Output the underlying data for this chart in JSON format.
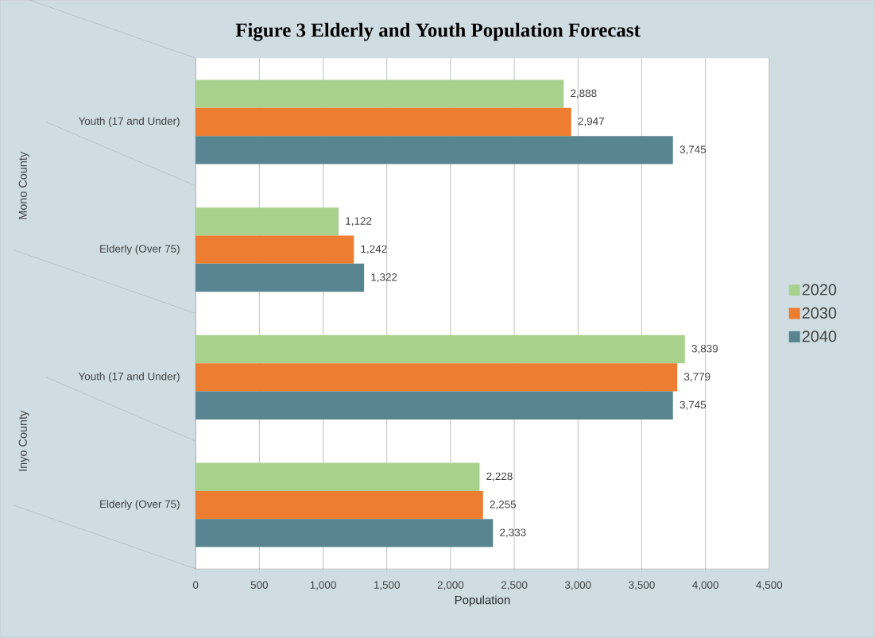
{
  "chart_data": {
    "type": "bar",
    "orientation": "horizontal",
    "title": "Figure 3 Elderly and Youth Population Forecast",
    "xlabel": "Population",
    "categories": [
      "Youth (17 and Under)",
      "Elderly (Over 75)",
      "Youth (17 and Under)",
      "Elderly (Over 75)"
    ],
    "annotations": [
      "Mono County",
      "Inyo County"
    ],
    "series": [
      {
        "name": "2020",
        "color": "#a9d18e",
        "values": [
          2888,
          1122,
          3839,
          2228
        ],
        "value_labels": [
          "2,888",
          "1,122",
          "3,839",
          "2,228"
        ]
      },
      {
        "name": "2030",
        "color": "#ed7d31",
        "values": [
          2947,
          1242,
          3779,
          2255
        ],
        "value_labels": [
          "2,947",
          "1,242",
          "3,779",
          "2,255"
        ]
      },
      {
        "name": "2040",
        "color": "#58858f",
        "values": [
          3745,
          1322,
          3745,
          2333
        ],
        "value_labels": [
          "3,745",
          "1,322",
          "3,745",
          "2,333"
        ]
      }
    ],
    "xlim": [
      0,
      4500
    ],
    "xticks": [
      0,
      500,
      {
        "value": 1000,
        "label": "1,000"
      },
      {
        "value": 1500,
        "label": "1,500"
      },
      {
        "value": 2000,
        "label": "2,000"
      },
      {
        "value": 2500,
        "label": "2,500"
      },
      {
        "value": 3000,
        "label": "3,000"
      },
      {
        "value": 3500,
        "label": "3,500"
      },
      {
        "value": 4000,
        "label": "4,000"
      },
      {
        "value": 4500,
        "label": "4,500"
      }
    ],
    "grid": "x",
    "legend": "right"
  }
}
